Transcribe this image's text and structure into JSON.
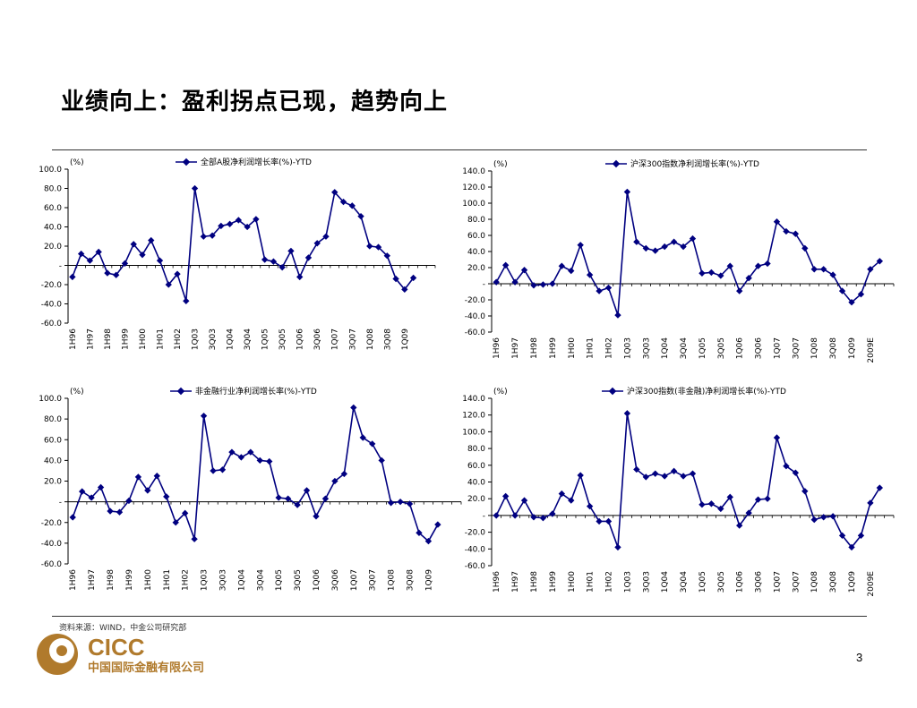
{
  "page_title": "业绩向上：盈利拐点已现，趋势向上",
  "source_text": "资料来源：WIND，中金公司研究部",
  "logo": {
    "name": "CICC",
    "subtitle": "中国国际金融有限公司"
  },
  "page_number": "3",
  "colors": {
    "series": "#000080",
    "brand": "#b07a2c",
    "rule": "#333333"
  },
  "chart_data": [
    {
      "type": "line",
      "unit_label": "(%)",
      "legend": "全部A股净利润增长率(%)-YTD",
      "ylim": [
        -60,
        100
      ],
      "yticks": [
        -60,
        -40,
        -20,
        0,
        20,
        40,
        60,
        80,
        100
      ],
      "ytick_labels": [
        "-60.0",
        "-40.0",
        "-20.0",
        "-",
        "20.0",
        "40.0",
        "60.0",
        "80.0",
        "100.0"
      ],
      "x_count": 42,
      "xtick_labels": [
        "1H96",
        "1H97",
        "1H98",
        "1H99",
        "1H00",
        "1H01",
        "1H02",
        "1Q03",
        "3Q03",
        "1Q04",
        "3Q04",
        "1Q05",
        "3Q05",
        "1Q06",
        "3Q06",
        "1Q07",
        "3Q07",
        "1Q08",
        "3Q08",
        "1Q09"
      ],
      "xtick_positions": [
        0,
        2,
        4,
        6,
        8,
        10,
        12,
        14,
        16,
        18,
        20,
        22,
        24,
        26,
        28,
        30,
        32,
        34,
        36,
        38
      ],
      "series": [
        {
          "name": "全部A股净利润增长率(%)-YTD",
          "values": [
            -12,
            12,
            5,
            14,
            -8,
            -10,
            2,
            22,
            11,
            26,
            5,
            -20,
            -9,
            -37,
            80,
            30,
            31,
            41,
            43,
            47,
            40,
            48,
            6,
            4,
            -2,
            15,
            -12,
            8,
            23,
            30,
            76,
            66,
            62,
            51,
            20,
            19,
            10,
            -14,
            -25,
            -13
          ]
        }
      ]
    },
    {
      "type": "line",
      "unit_label": "(%)",
      "legend": "沪深300指数净利润增长率(%)-YTD",
      "ylim": [
        -60,
        140
      ],
      "yticks": [
        -60,
        -40,
        -20,
        0,
        20,
        40,
        60,
        80,
        100,
        120,
        140
      ],
      "ytick_labels": [
        "-60.0",
        "-40.0",
        "-20.0",
        "-",
        "20.0",
        "40.0",
        "60.0",
        "80.0",
        "100.0",
        "120.0",
        "140.0"
      ],
      "x_count": 43,
      "xtick_labels": [
        "1H96",
        "1H97",
        "1H98",
        "1H99",
        "1H00",
        "1H01",
        "1H02",
        "1Q03",
        "3Q03",
        "1Q04",
        "3Q04",
        "1Q05",
        "3Q05",
        "1Q06",
        "3Q06",
        "1Q07",
        "3Q07",
        "1Q08",
        "3Q08",
        "1Q09",
        "2009E"
      ],
      "xtick_positions": [
        0,
        2,
        4,
        6,
        8,
        10,
        12,
        14,
        16,
        18,
        20,
        22,
        24,
        26,
        28,
        30,
        32,
        34,
        36,
        38,
        40
      ],
      "series": [
        {
          "name": "沪深300指数净利润增长率(%)-YTD",
          "values": [
            2,
            23,
            2,
            17,
            -2,
            -1,
            0,
            22,
            16,
            48,
            11,
            -9,
            -5,
            -39,
            114,
            52,
            44,
            41,
            46,
            52,
            46,
            56,
            13,
            14,
            10,
            22,
            -9,
            7,
            22,
            25,
            77,
            65,
            62,
            44,
            18,
            18,
            11,
            -9,
            -23,
            -13,
            18,
            28
          ]
        }
      ]
    },
    {
      "type": "line",
      "unit_label": "(%)",
      "legend": "非金融行业净利润增长率(%)-YTD",
      "ylim": [
        -60,
        100
      ],
      "yticks": [
        -60,
        -40,
        -20,
        0,
        20,
        40,
        60,
        80,
        100
      ],
      "ytick_labels": [
        "-60.0",
        "-40.0",
        "-20.0",
        "-",
        "20.0",
        "40.0",
        "60.0",
        "80.0",
        "100.0"
      ],
      "x_count": 42,
      "xtick_labels": [
        "1H96",
        "1H97",
        "1H98",
        "1H99",
        "1H00",
        "1H01",
        "1H02",
        "1Q03",
        "3Q03",
        "1Q04",
        "3Q04",
        "1Q05",
        "3Q05",
        "1Q06",
        "3Q06",
        "1Q07",
        "3Q07",
        "1Q08",
        "3Q08",
        "1Q09"
      ],
      "xtick_positions": [
        0,
        2,
        4,
        6,
        8,
        10,
        12,
        14,
        16,
        18,
        20,
        22,
        24,
        26,
        28,
        30,
        32,
        34,
        36,
        38
      ],
      "series": [
        {
          "name": "非金融行业净利润增长率(%)-YTD",
          "values": [
            -15,
            10,
            4,
            14,
            -9,
            -10,
            1,
            24,
            11,
            25,
            5,
            -20,
            -11,
            -36,
            83,
            30,
            31,
            48,
            43,
            48,
            40,
            39,
            4,
            3,
            -3,
            11,
            -14,
            3,
            20,
            27,
            91,
            62,
            56,
            40,
            -1,
            0,
            -2,
            -30,
            -38,
            -22
          ]
        }
      ]
    },
    {
      "type": "line",
      "unit_label": "(%)",
      "legend": "沪深300指数(非金融)净利润增长率(%)-YTD",
      "ylim": [
        -60,
        140
      ],
      "yticks": [
        -60,
        -40,
        -20,
        0,
        20,
        40,
        60,
        80,
        100,
        120,
        140
      ],
      "ytick_labels": [
        "-60.0",
        "-40.0",
        "-20.0",
        "-",
        "20.0",
        "40.0",
        "60.0",
        "80.0",
        "100.0",
        "120.0",
        "140.0"
      ],
      "x_count": 43,
      "xtick_labels": [
        "1H96",
        "1H97",
        "1H98",
        "1H99",
        "1H00",
        "1H01",
        "1H02",
        "1Q03",
        "3Q03",
        "1Q04",
        "3Q04",
        "1Q05",
        "3Q05",
        "1Q06",
        "3Q06",
        "1Q07",
        "3Q07",
        "1Q08",
        "3Q08",
        "1Q09",
        "2009E"
      ],
      "xtick_positions": [
        0,
        2,
        4,
        6,
        8,
        10,
        12,
        14,
        16,
        18,
        20,
        22,
        24,
        26,
        28,
        30,
        32,
        34,
        36,
        38,
        40
      ],
      "series": [
        {
          "name": "沪深300指数(非金融)净利润增长率(%)-YTD",
          "values": [
            0,
            23,
            0,
            18,
            -2,
            -3,
            2,
            26,
            18,
            48,
            11,
            -7,
            -7,
            -38,
            122,
            55,
            46,
            50,
            47,
            53,
            47,
            50,
            13,
            14,
            8,
            22,
            -12,
            3,
            19,
            20,
            93,
            59,
            51,
            29,
            -5,
            -2,
            -1,
            -24,
            -38,
            -24,
            15,
            33
          ]
        }
      ]
    }
  ]
}
